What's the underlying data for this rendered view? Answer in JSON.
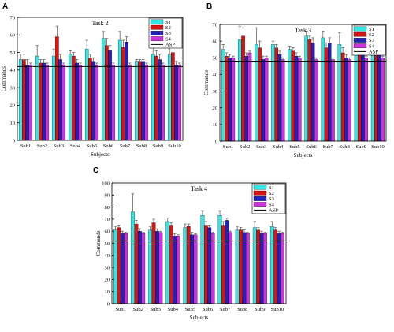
{
  "chart_data": [
    {
      "panel": "A",
      "type": "bar",
      "title": "Task 2",
      "xlabel": "Subjects",
      "ylabel": "Commands",
      "ylim": [
        0,
        70
      ],
      "yticks": [
        0,
        10,
        20,
        30,
        40,
        50,
        60,
        70
      ],
      "categories": [
        "Sub1",
        "Sub2",
        "Sub3",
        "Sub4",
        "Sub5",
        "Sub6",
        "Sub7",
        "Sub8",
        "Sub9",
        "Sub10"
      ],
      "series": [
        {
          "name": "S1",
          "color": "#33e6e6",
          "values": [
            46,
            48,
            48,
            49,
            52,
            58,
            57,
            45,
            49,
            49
          ],
          "errors": [
            3,
            6,
            4,
            2,
            5,
            4,
            5,
            1,
            4,
            5
          ]
        },
        {
          "name": "S2",
          "color": "#dd1111",
          "values": [
            46,
            44,
            59,
            48,
            47,
            54,
            53,
            45,
            48,
            50
          ],
          "errors": [
            3,
            2,
            6,
            2,
            2,
            4,
            4,
            1,
            3,
            4
          ]
        },
        {
          "name": "S3",
          "color": "#2222bb",
          "values": [
            43,
            44,
            46,
            44,
            45,
            51,
            56,
            45,
            46,
            43
          ],
          "errors": [
            3,
            2,
            3,
            2,
            2,
            3,
            3,
            1,
            3,
            2
          ]
        },
        {
          "name": "S4",
          "color": "#cc33dd",
          "values": [
            43,
            43,
            43,
            43,
            43,
            43,
            43,
            43,
            43,
            43
          ],
          "errors": [
            1,
            1,
            1,
            1,
            1,
            1,
            1,
            1,
            1,
            1
          ]
        }
      ],
      "reference_line": {
        "name": "ASP",
        "value": 42
      },
      "legend": "top-right",
      "grid": false
    },
    {
      "panel": "B",
      "type": "bar",
      "title": "Task 3",
      "xlabel": "Subjects",
      "ylabel": "Commands",
      "ylim": [
        0,
        70
      ],
      "yticks": [
        0,
        10,
        20,
        30,
        40,
        50,
        60,
        70
      ],
      "categories": [
        "Sub1",
        "Sub2",
        "Sub3",
        "Sub4",
        "Sub5",
        "Sub6",
        "Sub7",
        "Sub8",
        "Sub9",
        "Sub10"
      ],
      "series": [
        {
          "name": "S1",
          "color": "#33e6e6",
          "values": [
            55,
            61,
            58,
            58,
            55,
            63,
            62,
            58,
            54,
            57
          ],
          "errors": [
            3,
            8,
            10,
            2,
            2,
            3,
            4,
            7,
            3,
            4
          ]
        },
        {
          "name": "S2",
          "color": "#dd1111",
          "values": [
            51,
            63,
            56,
            56,
            54,
            61,
            56,
            53,
            55,
            57
          ],
          "errors": [
            2,
            5,
            4,
            2,
            2,
            2,
            3,
            3,
            2,
            3
          ]
        },
        {
          "name": "S3",
          "color": "#2222bb",
          "values": [
            50,
            51,
            49,
            52,
            51,
            59,
            59,
            50,
            52,
            52
          ],
          "errors": [
            2,
            2,
            2,
            2,
            2,
            3,
            3,
            2,
            2,
            3
          ]
        },
        {
          "name": "S4",
          "color": "#cc33dd",
          "values": [
            50,
            53,
            50,
            49,
            50,
            49,
            49,
            49,
            50,
            50
          ],
          "errors": [
            1,
            1,
            1,
            1,
            1,
            1,
            1,
            1,
            1,
            1
          ]
        }
      ],
      "reference_line": {
        "name": "ASP",
        "value": 48
      },
      "legend": "top-right",
      "grid": false
    },
    {
      "panel": "C",
      "type": "bar",
      "title": "Task 4",
      "xlabel": "Subjects",
      "ylabel": "Commands",
      "ylim": [
        0,
        100
      ],
      "yticks": [
        0,
        10,
        20,
        30,
        40,
        50,
        60,
        70,
        80,
        90,
        100
      ],
      "categories": [
        "Sub1",
        "Sub2",
        "Sub3",
        "Sub4",
        "Sub5",
        "Sub6",
        "Sub7",
        "Sub8",
        "Sub9",
        "Sub10"
      ],
      "series": [
        {
          "name": "S1",
          "color": "#33e6e6",
          "values": [
            61,
            76,
            61,
            68,
            63,
            73,
            73,
            61,
            63,
            64
          ],
          "errors": [
            3,
            15,
            3,
            3,
            3,
            4,
            4,
            3,
            5,
            4
          ]
        },
        {
          "name": "S2",
          "color": "#dd1111",
          "values": [
            63,
            66,
            67,
            65,
            64,
            65,
            65,
            61,
            61,
            61
          ],
          "errors": [
            2,
            3,
            3,
            2,
            2,
            3,
            3,
            2,
            2,
            2
          ]
        },
        {
          "name": "S3",
          "color": "#2222bb",
          "values": [
            58,
            60,
            60,
            56,
            57,
            63,
            69,
            59,
            58,
            58
          ],
          "errors": [
            2,
            2,
            2,
            2,
            2,
            2,
            2,
            2,
            2,
            2
          ]
        },
        {
          "name": "S4",
          "color": "#cc33dd",
          "values": [
            58,
            58,
            59,
            56,
            57,
            58,
            59,
            58,
            58,
            58
          ],
          "errors": [
            1,
            1,
            1,
            1,
            1,
            1,
            1,
            1,
            1,
            1
          ]
        }
      ],
      "reference_line": {
        "name": "ASP",
        "value": 52
      },
      "legend": "top-right",
      "grid": false
    }
  ]
}
